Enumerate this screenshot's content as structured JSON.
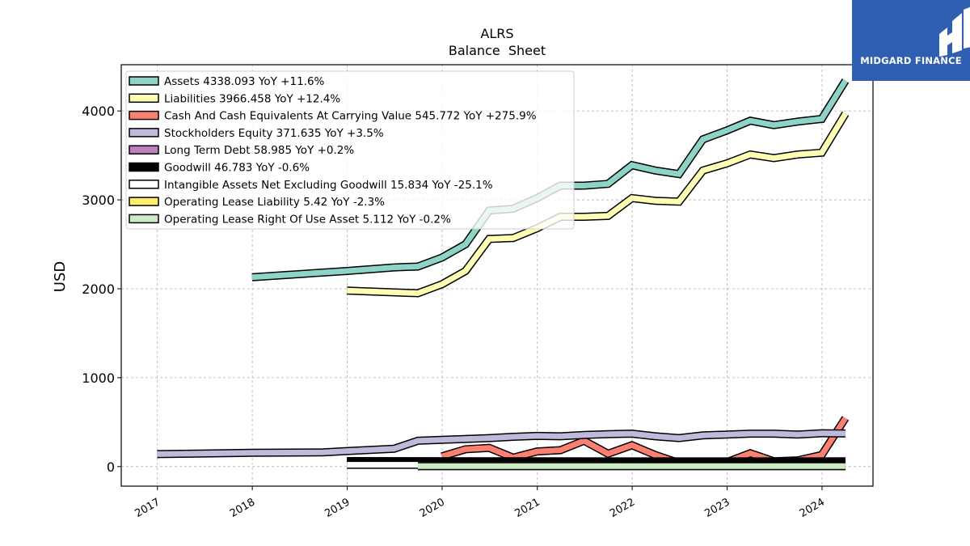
{
  "chart_data": {
    "type": "line",
    "title": "ALRS",
    "subtitle": "Balance  Sheet",
    "xlabel": "",
    "ylabel": "USD",
    "x_tick_labels": [
      "2017",
      "2018",
      "2019",
      "2020",
      "2021",
      "2022",
      "2023",
      "2024"
    ],
    "y_tick_labels": [
      "0",
      "1000",
      "2000",
      "3000",
      "4000"
    ],
    "xlim": [
      "2016-08-15",
      "2024-07-15"
    ],
    "ylim": [
      -220,
      4520
    ],
    "grid": true,
    "legend_position": "top-left",
    "series": [
      {
        "name": "Assets",
        "legend": "Assets  4338.093 YoY +11.6%",
        "color": "#8dd3c7",
        "points": [
          [
            "2017-12-31",
            2130
          ],
          [
            "2018-12-31",
            2200
          ],
          [
            "2019-06-30",
            2240
          ],
          [
            "2019-09-30",
            2250
          ],
          [
            "2019-12-31",
            2350
          ],
          [
            "2020-03-31",
            2500
          ],
          [
            "2020-06-30",
            2880
          ],
          [
            "2020-09-30",
            2900
          ],
          [
            "2020-12-31",
            3020
          ],
          [
            "2021-03-31",
            3160
          ],
          [
            "2021-06-30",
            3160
          ],
          [
            "2021-09-30",
            3180
          ],
          [
            "2021-12-31",
            3390
          ],
          [
            "2022-03-31",
            3330
          ],
          [
            "2022-06-30",
            3290
          ],
          [
            "2022-09-30",
            3680
          ],
          [
            "2022-12-31",
            3780
          ],
          [
            "2023-03-31",
            3890
          ],
          [
            "2023-06-30",
            3840
          ],
          [
            "2023-09-30",
            3880
          ],
          [
            "2023-12-31",
            3910
          ],
          [
            "2024-03-31",
            4340
          ]
        ]
      },
      {
        "name": "Liabilities",
        "legend": "Liabilities  3966.458 YoY +12.4%",
        "color": "#ffffb3",
        "points": [
          [
            "2018-12-31",
            1980
          ],
          [
            "2019-09-30",
            1950
          ],
          [
            "2019-12-31",
            2050
          ],
          [
            "2020-03-31",
            2200
          ],
          [
            "2020-06-30",
            2560
          ],
          [
            "2020-09-30",
            2570
          ],
          [
            "2020-12-31",
            2680
          ],
          [
            "2021-03-31",
            2810
          ],
          [
            "2021-06-30",
            2810
          ],
          [
            "2021-09-30",
            2820
          ],
          [
            "2021-12-31",
            3020
          ],
          [
            "2022-03-31",
            2990
          ],
          [
            "2022-06-30",
            2980
          ],
          [
            "2022-09-30",
            3330
          ],
          [
            "2022-12-31",
            3410
          ],
          [
            "2023-03-31",
            3510
          ],
          [
            "2023-06-30",
            3470
          ],
          [
            "2023-09-30",
            3510
          ],
          [
            "2023-12-31",
            3530
          ],
          [
            "2024-03-31",
            3970
          ]
        ]
      },
      {
        "name": "Cash And Cash Equivalents At Carrying Value",
        "legend": "Cash And Cash Equivalents At Carrying Value  545.772 YoY +275.9%",
        "color": "#fb8072",
        "points": [
          [
            "2019-12-31",
            115
          ],
          [
            "2020-03-31",
            195
          ],
          [
            "2020-06-30",
            210
          ],
          [
            "2020-09-30",
            100
          ],
          [
            "2020-12-31",
            170
          ],
          [
            "2021-03-31",
            185
          ],
          [
            "2021-06-30",
            290
          ],
          [
            "2021-09-30",
            145
          ],
          [
            "2021-12-31",
            240
          ],
          [
            "2022-03-31",
            130
          ],
          [
            "2022-06-30",
            40
          ],
          [
            "2022-09-30",
            20
          ],
          [
            "2022-12-31",
            50
          ],
          [
            "2023-03-31",
            150
          ],
          [
            "2023-06-30",
            60
          ],
          [
            "2023-09-30",
            70
          ],
          [
            "2023-12-31",
            130
          ],
          [
            "2024-03-31",
            545
          ]
        ]
      },
      {
        "name": "Stockholders Equity",
        "legend": "Stockholders Equity  371.635 YoY +3.5%",
        "color": "#bebada",
        "points": [
          [
            "2016-12-31",
            140
          ],
          [
            "2017-12-31",
            155
          ],
          [
            "2018-09-30",
            160
          ],
          [
            "2018-12-31",
            175
          ],
          [
            "2019-06-30",
            200
          ],
          [
            "2019-09-30",
            290
          ],
          [
            "2019-12-31",
            300
          ],
          [
            "2020-06-30",
            320
          ],
          [
            "2020-09-30",
            335
          ],
          [
            "2020-12-31",
            345
          ],
          [
            "2021-03-31",
            340
          ],
          [
            "2021-06-30",
            355
          ],
          [
            "2021-09-30",
            365
          ],
          [
            "2021-12-31",
            370
          ],
          [
            "2022-03-31",
            340
          ],
          [
            "2022-06-30",
            320
          ],
          [
            "2022-09-30",
            350
          ],
          [
            "2022-12-31",
            360
          ],
          [
            "2023-03-31",
            370
          ],
          [
            "2023-06-30",
            370
          ],
          [
            "2023-09-30",
            360
          ],
          [
            "2023-12-31",
            375
          ],
          [
            "2024-03-31",
            372
          ]
        ]
      },
      {
        "name": "Long Term Debt",
        "legend": "Long Term Debt  58.985 YoY +0.2%",
        "color": "#bc80bd",
        "points": [
          [
            "2018-12-31",
            62
          ],
          [
            "2020-06-30",
            60
          ],
          [
            "2022-06-30",
            58
          ],
          [
            "2024-03-31",
            59
          ]
        ]
      },
      {
        "name": "Goodwill",
        "legend": "Goodwill  46.783 YoY -0.6%",
        "color": "#000000",
        "points": [
          [
            "2018-12-31",
            55
          ],
          [
            "2021-06-30",
            50
          ],
          [
            "2024-03-31",
            47
          ]
        ]
      },
      {
        "name": "Intangible Assets Net Excluding Goodwill",
        "legend": "Intangible Assets Net Excluding Goodwill  15.834 YoY -25.1%",
        "color": "#ffffff",
        "points": [
          [
            "2018-12-31",
            20
          ],
          [
            "2019-09-30",
            20
          ],
          [
            "2021-06-30",
            18
          ],
          [
            "2024-03-31",
            16
          ]
        ]
      },
      {
        "name": "Operating Lease Liability",
        "legend": "Operating Lease Liability  5.42 YoY -2.3%",
        "color": "#ffed6f",
        "points": [
          [
            "2019-09-30",
            6
          ],
          [
            "2022-06-30",
            5
          ],
          [
            "2024-03-31",
            5
          ]
        ]
      },
      {
        "name": "Operating Lease Right Of Use Asset",
        "legend": "Operating Lease Right Of Use Asset  5.112 YoY -0.2%",
        "color": "#ccebc5",
        "points": [
          [
            "2019-09-30",
            6
          ],
          [
            "2022-06-30",
            5
          ],
          [
            "2024-03-31",
            5
          ]
        ]
      }
    ]
  },
  "logo": {
    "text": "MIDGARD FINANCE",
    "color": "#2f5fb0"
  }
}
